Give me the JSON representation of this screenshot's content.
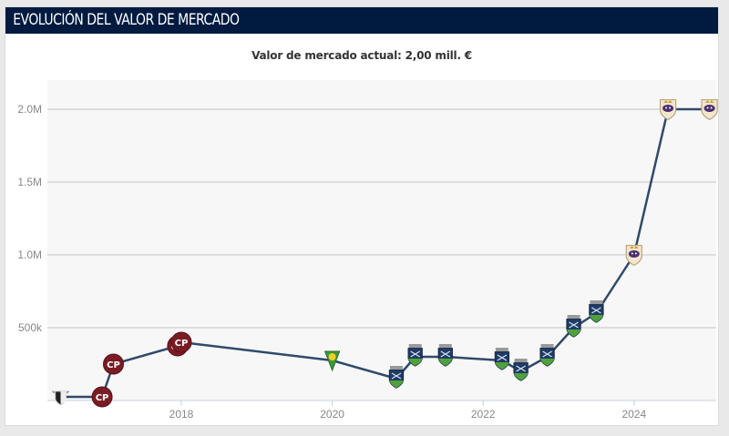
{
  "header": {
    "title": "EVOLUCIÓN DEL VALOR DE MERCADO"
  },
  "subtitle": "Valor de mercado actual: 2,00 mill. €",
  "colors": {
    "header_bg": "#001a40",
    "line": "#2f4a6b",
    "grid": "#cfcfcf",
    "plot_bg": "#f7f7f7",
    "club_maroon": "#7a1c24",
    "club_navy": "#1f3b66",
    "club_green": "#4fa23a",
    "club_cream": "#f3e6cc"
  },
  "chart_data": {
    "type": "line",
    "title": "Valor de mercado actual: 2,00 mill. €",
    "xlabel": "",
    "ylabel": "",
    "xlim": [
      2016.0,
      2025.05
    ],
    "ylim": [
      0,
      2200000
    ],
    "grid": true,
    "y_ticks": [
      {
        "value": 500000,
        "label": "500k"
      },
      {
        "value": 1000000,
        "label": "1.0M"
      },
      {
        "value": 1500000,
        "label": "1.5M"
      },
      {
        "value": 2000000,
        "label": "2.0M"
      }
    ],
    "x_ticks": [
      {
        "value": 2018,
        "label": "2018"
      },
      {
        "value": 2020,
        "label": "2020"
      },
      {
        "value": 2022,
        "label": "2022"
      },
      {
        "value": 2024,
        "label": "2024"
      }
    ],
    "series": [
      {
        "name": "Valor de mercado",
        "points": [
          {
            "x": 2016.4,
            "y": 25000,
            "club_icon": "club-crest-black-white"
          },
          {
            "x": 2016.95,
            "y": 25000,
            "club_icon": "club-crest-maroon"
          },
          {
            "x": 2017.1,
            "y": 250000,
            "club_icon": "club-crest-maroon"
          },
          {
            "x": 2017.95,
            "y": 375000,
            "club_icon": "club-crest-maroon"
          },
          {
            "x": 2018.0,
            "y": 400000,
            "club_icon": "club-crest-maroon"
          },
          {
            "x": 2020.0,
            "y": 275000,
            "club_icon": "club-crest-green-yellow"
          },
          {
            "x": 2020.85,
            "y": 150000,
            "club_icon": "club-crest-navy-green"
          },
          {
            "x": 2021.1,
            "y": 300000,
            "club_icon": "club-crest-navy-green"
          },
          {
            "x": 2021.5,
            "y": 300000,
            "club_icon": "club-crest-navy-green"
          },
          {
            "x": 2022.25,
            "y": 275000,
            "club_icon": "club-crest-navy-green"
          },
          {
            "x": 2022.5,
            "y": 200000,
            "club_icon": "club-crest-navy-green"
          },
          {
            "x": 2022.85,
            "y": 300000,
            "club_icon": "club-crest-navy-green"
          },
          {
            "x": 2023.2,
            "y": 500000,
            "club_icon": "club-crest-navy-green"
          },
          {
            "x": 2023.5,
            "y": 600000,
            "club_icon": "club-crest-navy-green"
          },
          {
            "x": 2024.0,
            "y": 1000000,
            "club_icon": "club-crest-cream-purple"
          },
          {
            "x": 2024.45,
            "y": 2000000,
            "club_icon": "club-crest-cream-purple"
          },
          {
            "x": 2025.0,
            "y": 2000000,
            "club_icon": "club-crest-cream-purple"
          }
        ]
      }
    ]
  }
}
